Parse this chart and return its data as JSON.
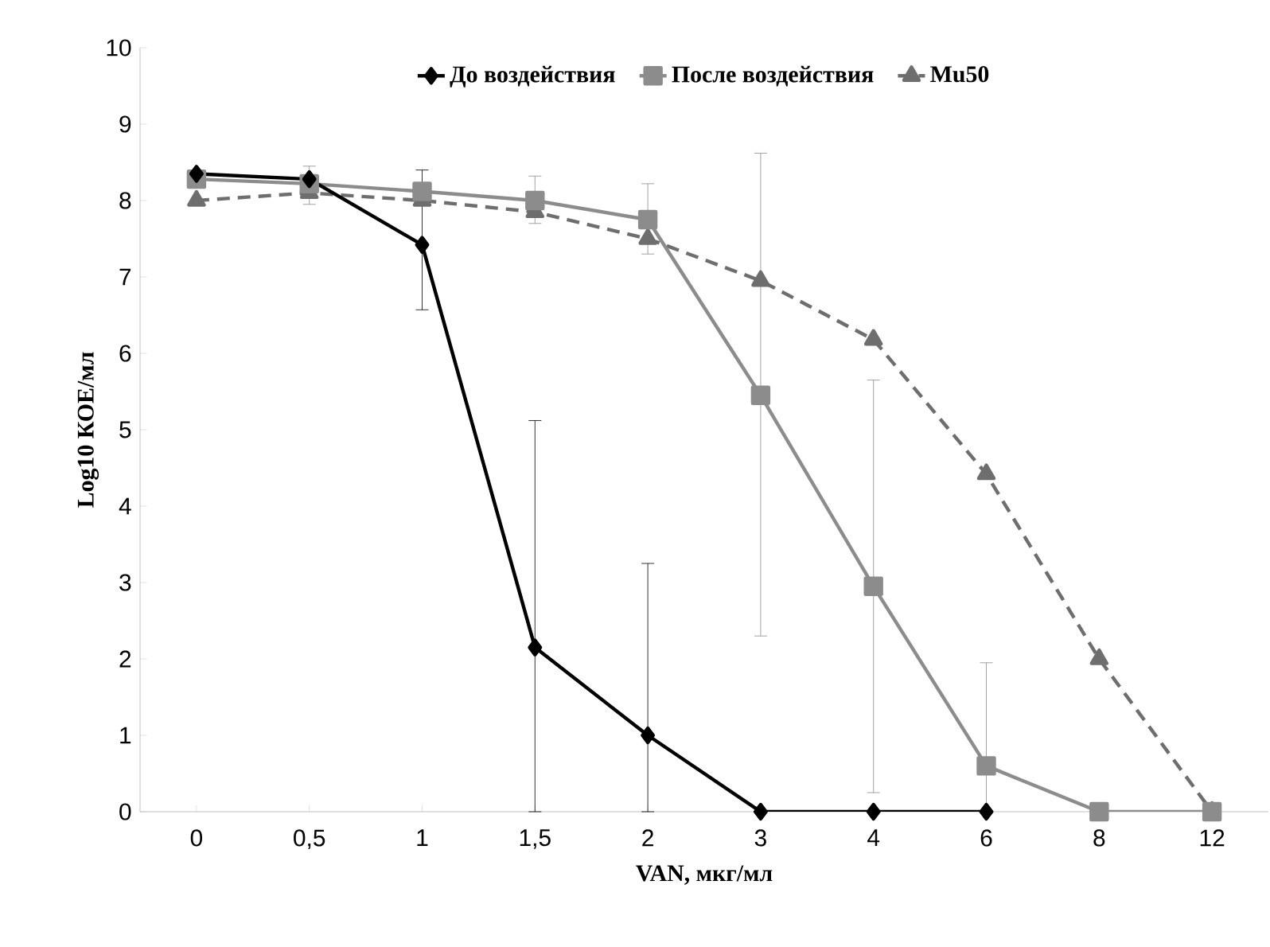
{
  "chart_data": {
    "type": "line",
    "xlabel": "VAN, мкг/мл",
    "ylabel": "Log10 КОЕ/мл",
    "categories": [
      "0",
      "0,5",
      "1",
      "1,5",
      "2",
      "3",
      "4",
      "6",
      "8",
      "12"
    ],
    "ylim": [
      0,
      10
    ],
    "yticks": [
      0,
      1,
      2,
      3,
      4,
      5,
      6,
      7,
      8,
      9,
      10
    ],
    "grid": false,
    "legend": "top",
    "series": [
      {
        "name": "До воздействия",
        "color": "#000000",
        "marker": "diamond",
        "line_style": "solid",
        "values": [
          8.35,
          8.28,
          7.42,
          2.15,
          1.0,
          0,
          0,
          0,
          null,
          null
        ],
        "errors": [
          null,
          null,
          [
            6.57,
            8.4
          ],
          [
            0,
            5.12
          ],
          [
            0,
            3.25
          ],
          null,
          null,
          null,
          null,
          null
        ]
      },
      {
        "name": "После воздействия",
        "color": "#8c8c8c",
        "marker": "square",
        "line_style": "solid",
        "values": [
          8.28,
          8.22,
          8.12,
          8.0,
          7.75,
          5.45,
          2.95,
          0.6,
          0,
          0
        ],
        "errors": [
          null,
          [
            7.95,
            8.45
          ],
          null,
          [
            7.7,
            8.32
          ],
          [
            7.3,
            8.22
          ],
          [
            2.3,
            8.62
          ],
          [
            0.25,
            5.65
          ],
          [
            0,
            1.95
          ],
          null,
          null
        ]
      },
      {
        "name": "Mu50",
        "color": "#6e6e6e",
        "marker": "triangle",
        "line_style": "dashed",
        "values": [
          8.0,
          8.1,
          8.0,
          7.85,
          7.5,
          6.95,
          6.18,
          4.42,
          2.0,
          0
        ]
      }
    ]
  }
}
